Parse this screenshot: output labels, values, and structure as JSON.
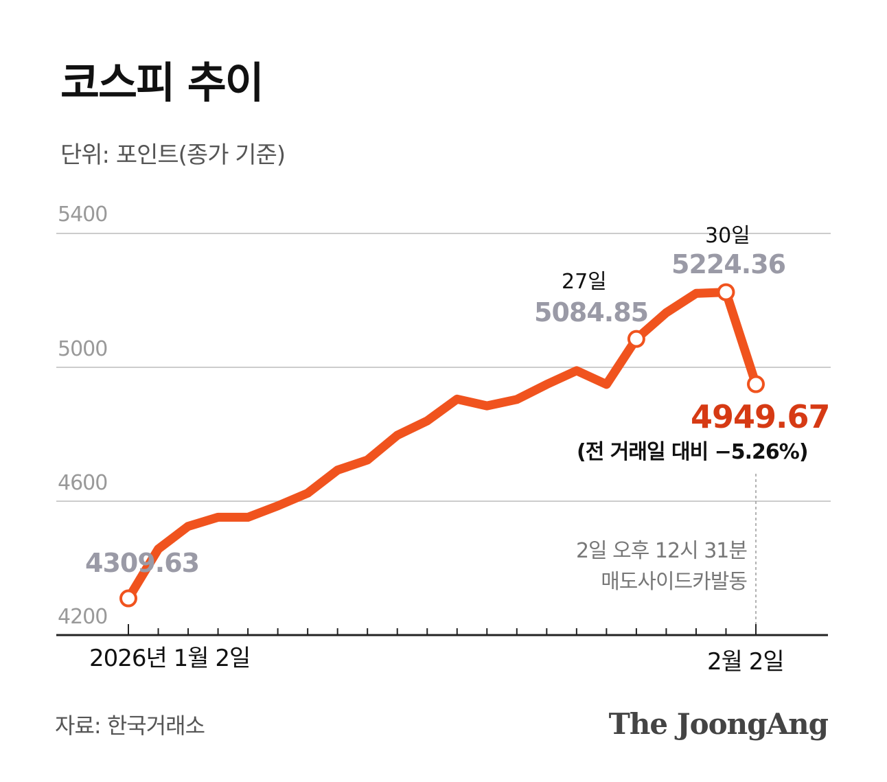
{
  "title": "코스피 추이",
  "unit_label": "단위: 포인트(종가 기준)",
  "source": "자료: 한국거래소",
  "brand": "The JoongAng",
  "colors": {
    "line": "#f0531e",
    "final_value": "#d63a14",
    "gridline": "#cccccc",
    "axis": "#222222",
    "value_label": "#9a9aa6"
  },
  "chart_data": {
    "type": "line",
    "title": "코스피 추이",
    "ylabel": "단위: 포인트(종가 기준)",
    "ylim": [
      4200,
      5400
    ],
    "yticks": [
      4200,
      4600,
      5000,
      5400
    ],
    "ytick_labels": [
      "4200",
      "4600",
      "5000",
      "5400"
    ],
    "x_start_label": "2026년 1월 2일",
    "x_end_label": "2월 2일",
    "series": [
      {
        "name": "코스피",
        "values": [
          4309.63,
          4457,
          4525,
          4552,
          4552,
          4586,
          4624,
          4693,
          4723,
          4797,
          4840,
          4905,
          4885,
          4904,
          4949,
          4990,
          4949,
          5084.85,
          5163,
          5221,
          5224.36,
          4949.67
        ]
      }
    ],
    "annotations": {
      "start": {
        "value": "4309.63"
      },
      "day27": {
        "date": "27일",
        "value": "5084.85"
      },
      "day30": {
        "date": "30일",
        "value": "5224.36"
      },
      "final": {
        "value": "4949.67",
        "change": "(전 거래일 대비 −5.26%)"
      },
      "event": {
        "line1": "2일 오후 12시 31분",
        "line2": "매도사이드카발동"
      }
    }
  }
}
